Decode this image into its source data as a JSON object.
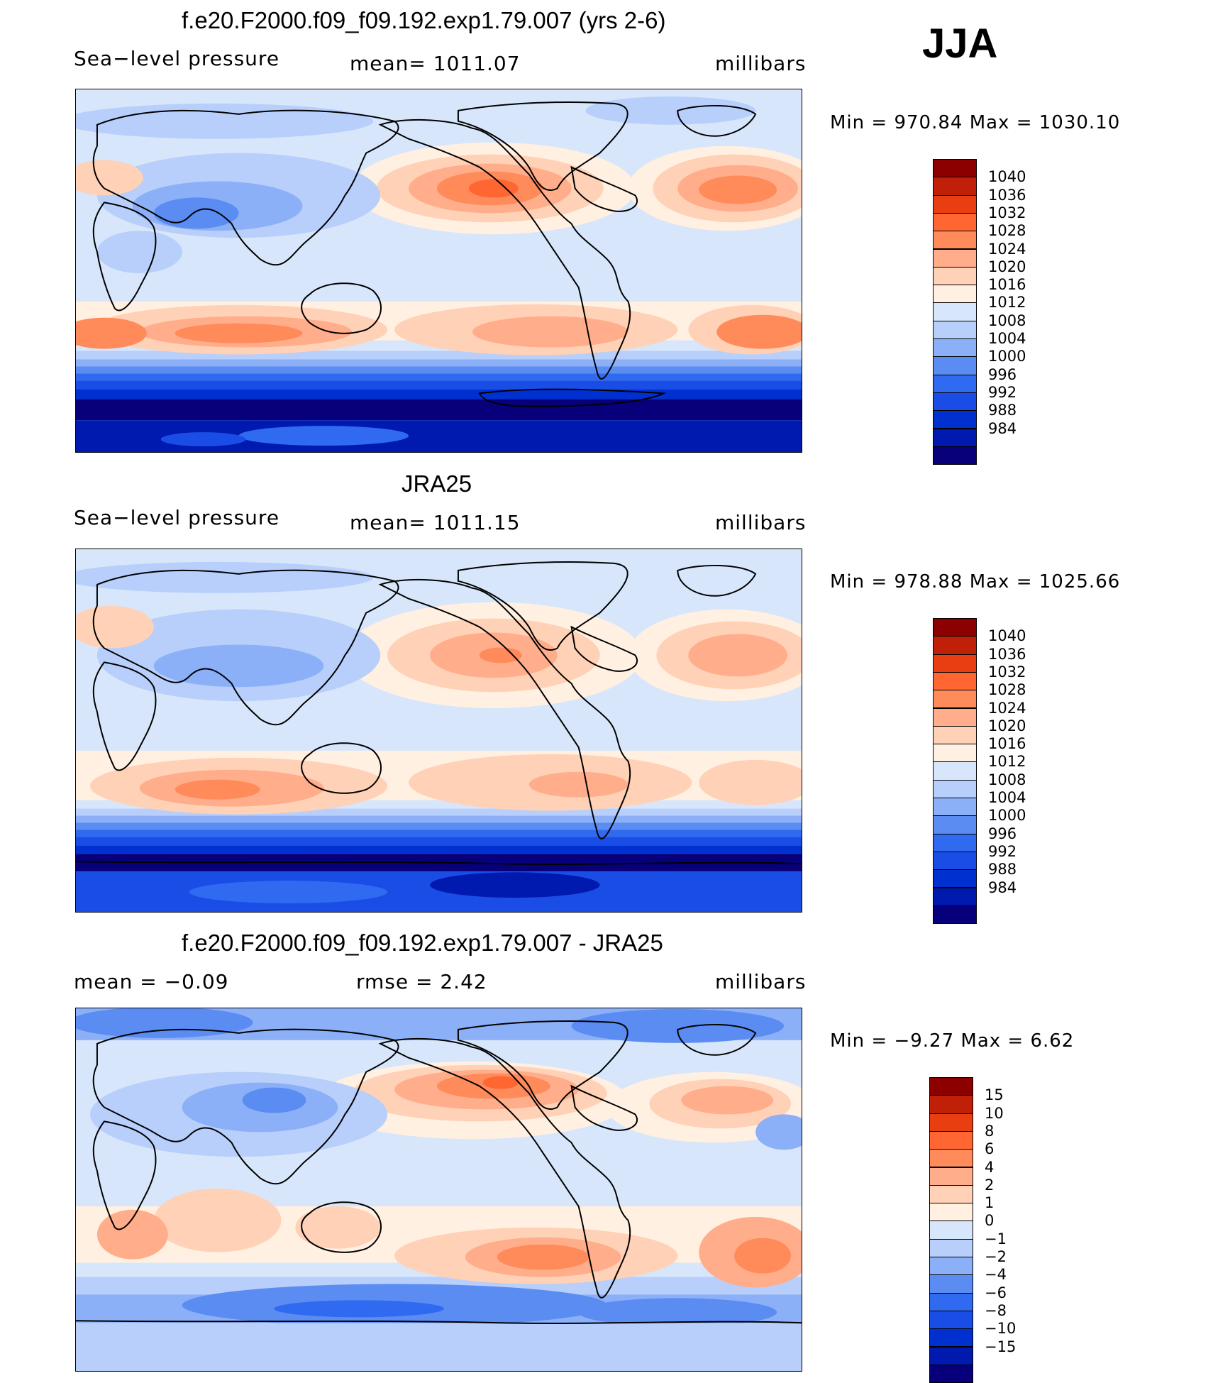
{
  "season": "JJA",
  "colors": {
    "scale": [
      "#08007a",
      "#001ab0",
      "#0030d0",
      "#1a4de6",
      "#2f6af0",
      "#5a8cf2",
      "#8cb0f7",
      "#b7cffa",
      "#d7e6fb",
      "#fff0e1",
      "#ffd1b6",
      "#ffad8a",
      "#ff8a5a",
      "#ff6632",
      "#e83e12",
      "#c12008",
      "#8c0000"
    ]
  },
  "panels": [
    {
      "title": "f.e20.F2000.f09_f09.192.exp1.79.007 (yrs 2-6)",
      "left_label": "Sea−level  pressure",
      "center_label": "mean=  1011.07",
      "units": "millibars",
      "minmax": "Min  =  970.84  Max  =  1030.10",
      "colorbar_labels": [
        "1040",
        "1036",
        "1032",
        "1028",
        "1024",
        "1020",
        "1016",
        "1012",
        "1008",
        "1004",
        "1000",
        "996",
        "992",
        "988",
        "984"
      ]
    },
    {
      "title": "JRA25",
      "left_label": "Sea−level  pressure",
      "center_label": "mean=  1011.15",
      "units": "millibars",
      "minmax": "Min  =  978.88  Max  =  1025.66",
      "colorbar_labels": [
        "1040",
        "1036",
        "1032",
        "1028",
        "1024",
        "1020",
        "1016",
        "1012",
        "1008",
        "1004",
        "1000",
        "996",
        "992",
        "988",
        "984"
      ]
    },
    {
      "title": "f.e20.F2000.f09_f09.192.exp1.79.007 - JRA25",
      "left_label": "mean  =    −0.09",
      "center_label": "rmse  =     2.42",
      "units": "millibars",
      "minmax": "Min  =   −9.27  Max  =      6.62",
      "colorbar_labels": [
        "15",
        "10",
        "8",
        "6",
        "4",
        "2",
        "1",
        "0",
        "−1",
        "−2",
        "−4",
        "−6",
        "−8",
        "−10",
        "−15"
      ]
    }
  ]
}
